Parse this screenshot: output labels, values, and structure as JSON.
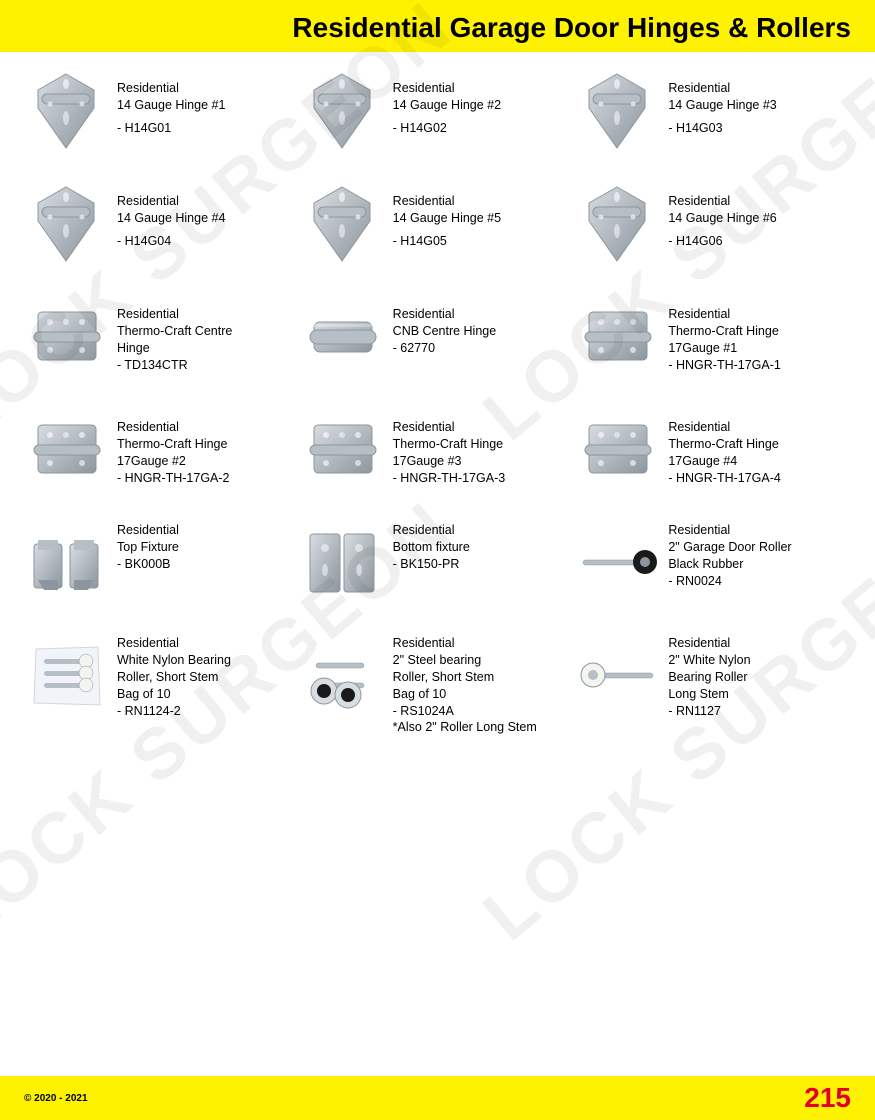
{
  "header": {
    "title": "Residential Garage Door Hinges & Rollers"
  },
  "colors": {
    "header_bg": "#fff200",
    "page_bg": "#ffffff",
    "text": "#000000",
    "page_number": "#e4002b",
    "metal_light": "#d8dde2",
    "metal_mid": "#b6bec6",
    "metal_dark": "#8d969e",
    "black": "#1a1a1a"
  },
  "watermark": "LOCK SURGEON",
  "footer": {
    "copyright": "© 2020 - 2021",
    "page": "215"
  },
  "rows": [
    [
      {
        "name": "Residential\n14 Gauge Hinge #1",
        "code": "- H14G01",
        "shape": "triangle_hinge"
      },
      {
        "name": "Residential\n14 Gauge Hinge #2",
        "code": "- H14G02",
        "shape": "triangle_hinge"
      },
      {
        "name": "Residential\n14 Gauge Hinge #3",
        "code": "- H14G03",
        "shape": "triangle_hinge"
      }
    ],
    [
      {
        "name": "Residential\n14 Gauge Hinge #4",
        "code": "- H14G04",
        "shape": "triangle_hinge"
      },
      {
        "name": "Residential\n14 Gauge Hinge #5",
        "code": "- H14G05",
        "shape": "triangle_hinge"
      },
      {
        "name": "Residential\n14 Gauge Hinge #6",
        "code": "- H14G06",
        "shape": "triangle_hinge"
      }
    ],
    [
      {
        "name": "Residential\nThermo-Craft Centre\nHinge",
        "code": "- TD134CTR",
        "shape": "square_hinge"
      },
      {
        "name": "Residential\nCNB Centre Hinge",
        "code": "- 62770",
        "shape": "barrel_hinge"
      },
      {
        "name": "Residential\nThermo-Craft Hinge\n17Gauge #1",
        "code": "- HNGR-TH-17GA-1",
        "shape": "square_hinge"
      }
    ],
    [
      {
        "name": "Residential\nThermo-Craft Hinge\n17Gauge #2",
        "code": "- HNGR-TH-17GA-2",
        "shape": "square_hinge"
      },
      {
        "name": "Residential\nThermo-Craft Hinge\n17Gauge #3",
        "code": "- HNGR-TH-17GA-3",
        "shape": "square_hinge"
      },
      {
        "name": "Residential\nThermo-Craft Hinge\n17Gauge #4",
        "code": "- HNGR-TH-17GA-4",
        "shape": "square_hinge"
      }
    ],
    [
      {
        "name": "Residential\nTop Fixture",
        "code": "- BK000B",
        "shape": "top_fixture"
      },
      {
        "name": "Residential\nBottom fixture",
        "code": "- BK150-PR",
        "shape": "bottom_fixture"
      },
      {
        "name": "Residential\n2\" Garage Door Roller\nBlack Rubber",
        "code": "- RN0024",
        "shape": "roller_black"
      }
    ],
    [
      {
        "name": "Residential\nWhite Nylon Bearing\nRoller, Short Stem\nBag of 10",
        "code": "- RN1124-2",
        "shape": "roller_bag"
      },
      {
        "name": "Residential\n2\" Steel bearing\nRoller, Short Stem\nBag of 10",
        "code": "- RS1024A\n*Also 2\" Roller Long Stem",
        "shape": "roller_steel_pair"
      },
      {
        "name": "Residential\n2\" White Nylon\nBearing Roller\nLong Stem",
        "code": "- RN1127",
        "shape": "roller_white_long"
      }
    ]
  ]
}
